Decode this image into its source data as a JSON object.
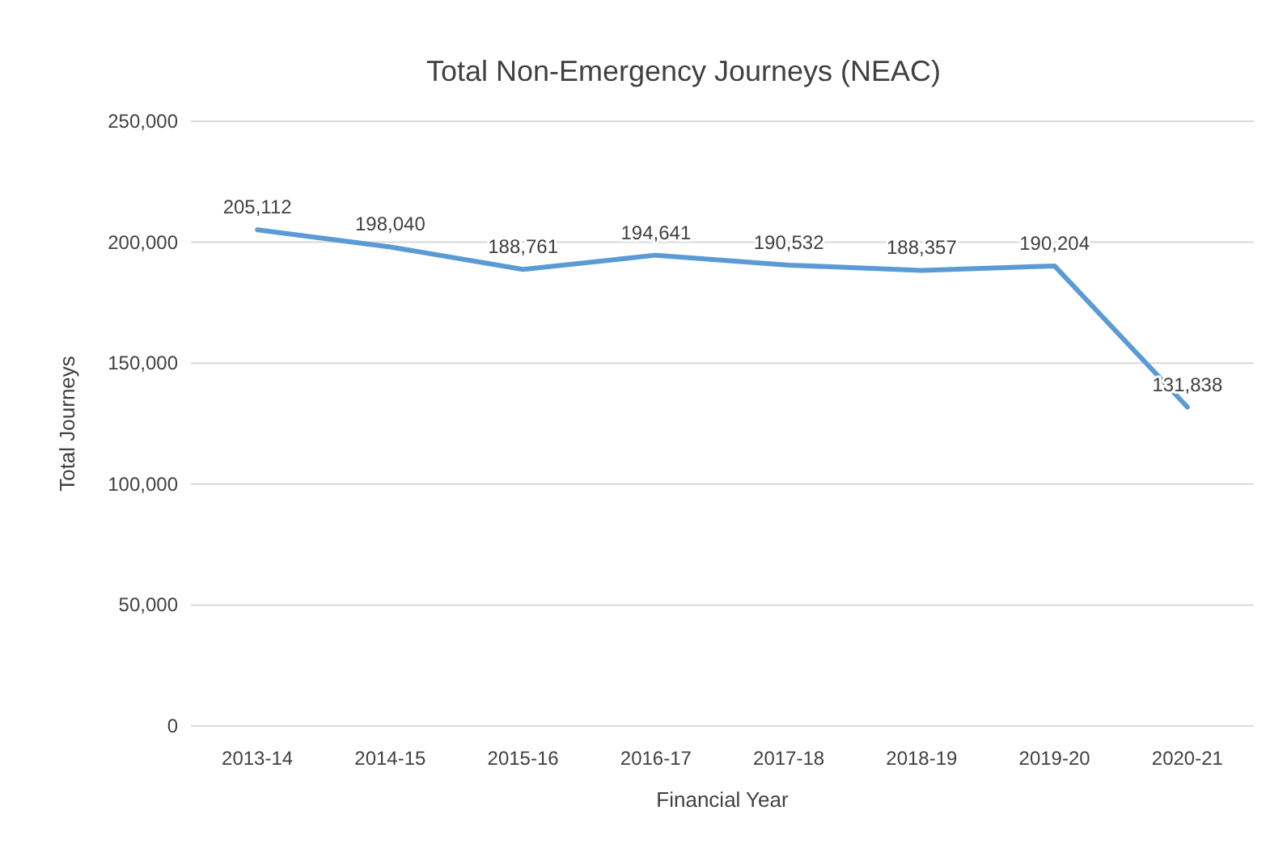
{
  "chart_data": {
    "type": "line",
    "title": "Total Non-Emergency Journeys (NEAC)",
    "xlabel": "Financial Year",
    "ylabel": "Total Journeys",
    "categories": [
      "2013-14",
      "2014-15",
      "2015-16",
      "2016-17",
      "2017-18",
      "2018-19",
      "2019-20",
      "2020-21"
    ],
    "series": [
      {
        "color": "#5b9bd5",
        "values": [
          205112,
          198040,
          188761,
          194641,
          190532,
          188357,
          190204,
          131838
        ],
        "value_labels": [
          "205,112",
          "198,040",
          "188,761",
          "194,641",
          "190,532",
          "188,357",
          "190,204",
          "131,838"
        ]
      }
    ],
    "ylim": [
      0,
      250000
    ],
    "yticks": [
      0,
      {
        "value": 50000,
        "label": "50,000"
      },
      {
        "value": 100000,
        "label": "100,000"
      },
      {
        "value": 150000,
        "label": "150,000"
      },
      {
        "value": 200000,
        "label": "200,000"
      },
      {
        "value": 250000,
        "label": "250,000"
      }
    ],
    "grid": "y",
    "marker": "none",
    "line_style": "solid"
  }
}
